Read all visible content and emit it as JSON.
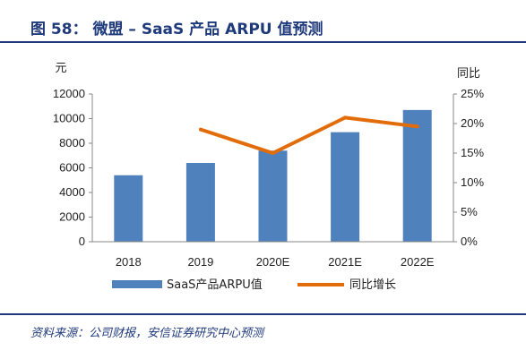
{
  "figure": {
    "title": "图 58： 微盟 – SaaS 产品 ARPU 值预测",
    "source": "资料来源：公司财报，安信证券研究中心预测"
  },
  "colors": {
    "bar": "#4f81bd",
    "line": "#e36c0a",
    "title": "#1f3a7a"
  },
  "chart_data": {
    "type": "bar",
    "categories": [
      "2018",
      "2019",
      "2020E",
      "2021E",
      "2022E"
    ],
    "series": [
      {
        "name": "SaaS产品ARPU值",
        "type": "bar",
        "axis": "left",
        "values": [
          5400,
          6400,
          7400,
          8900,
          10700
        ]
      },
      {
        "name": "同比增长",
        "type": "line",
        "axis": "right",
        "values": [
          null,
          0.19,
          0.15,
          0.21,
          0.195
        ]
      }
    ],
    "yleft": {
      "label": "元",
      "range": [
        0,
        12000
      ],
      "ticks": [
        "0",
        "2000",
        "4000",
        "6000",
        "8000",
        "10000",
        "12000"
      ]
    },
    "yright": {
      "label": "同比",
      "range": [
        0,
        0.25
      ],
      "ticks": [
        "0%",
        "5%",
        "10%",
        "15%",
        "20%",
        "25%"
      ]
    },
    "grid": false,
    "legend": "bottom"
  }
}
